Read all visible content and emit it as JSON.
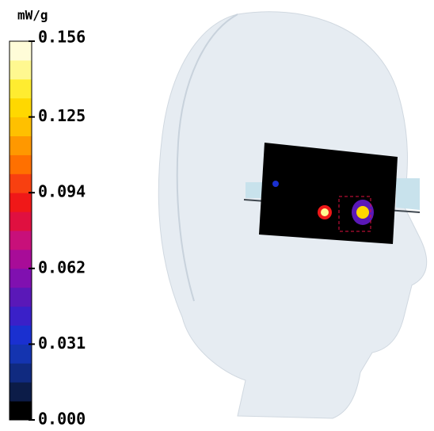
{
  "colorbar": {
    "unit": "mW/g",
    "ticks": [
      "0.156",
      "0.125",
      "0.094",
      "0.062",
      "0.031",
      "0.000"
    ],
    "colors": [
      "#000000",
      "#0c1c48",
      "#102a80",
      "#1434b0",
      "#1a30d0",
      "#3a20c8",
      "#5a18b8",
      "#8010b0",
      "#a80c98",
      "#c8107a",
      "#e01040",
      "#f01818",
      "#f84010",
      "#ff7000",
      "#ff9800",
      "#ffc000",
      "#ffd800",
      "#ffec30",
      "#fff890",
      "#fffcd8"
    ]
  }
}
